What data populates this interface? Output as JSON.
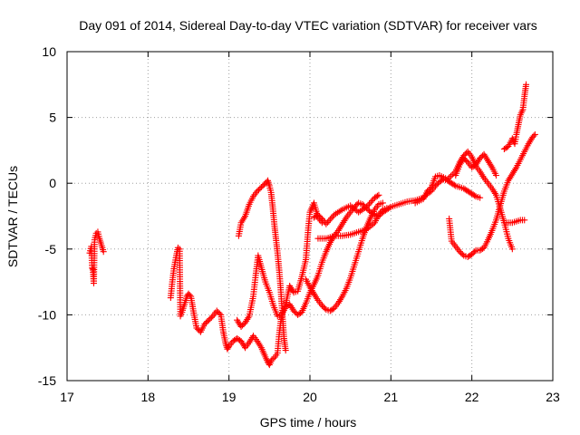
{
  "chart_data": {
    "type": "scatter",
    "title": "Day 091 of 2014, Sidereal Day-to-day VTEC variation (SDTVAR) for receiver vars",
    "xlabel": "GPS time / hours",
    "ylabel": "SDTVAR / TECUs",
    "xlim": [
      17,
      23
    ],
    "ylim": [
      -15,
      10
    ],
    "xticks": [
      17,
      18,
      19,
      20,
      21,
      22,
      23
    ],
    "yticks": [
      -15,
      -10,
      -5,
      0,
      5,
      10
    ],
    "xtick_labels": [
      "17",
      "18",
      "19",
      "20",
      "21",
      "22",
      "23"
    ],
    "ytick_labels": [
      "-15",
      "-10",
      "-5",
      "0",
      "5",
      "10"
    ],
    "grid": true,
    "marker": "+",
    "color": "#ff0000",
    "series": [
      {
        "name": "receiver-vars",
        "segments": [
          [
            [
              17.28,
              -5.3
            ],
            [
              17.3,
              -4.8
            ],
            [
              17.31,
              -6.4
            ],
            [
              17.32,
              -6.6
            ],
            [
              17.33,
              -7.6
            ],
            [
              17.34,
              -4.3
            ],
            [
              17.36,
              -3.8
            ],
            [
              17.38,
              -3.7
            ],
            [
              17.4,
              -4.2
            ],
            [
              17.42,
              -4.6
            ],
            [
              17.45,
              -5.2
            ]
          ],
          [
            [
              18.28,
              -8.7
            ],
            [
              18.3,
              -7.5
            ],
            [
              18.32,
              -6.5
            ],
            [
              18.35,
              -5.5
            ],
            [
              18.37,
              -4.9
            ],
            [
              18.39,
              -5.0
            ],
            [
              18.4,
              -10.1
            ],
            [
              18.42,
              -9.8
            ],
            [
              18.45,
              -9.2
            ],
            [
              18.48,
              -8.6
            ],
            [
              18.5,
              -8.4
            ],
            [
              18.53,
              -8.6
            ],
            [
              18.56,
              -9.7
            ],
            [
              18.6,
              -11.0
            ],
            [
              18.65,
              -11.3
            ],
            [
              18.7,
              -10.7
            ],
            [
              18.75,
              -10.4
            ],
            [
              18.8,
              -10.1
            ],
            [
              18.85,
              -9.7
            ],
            [
              18.9,
              -10.0
            ],
            [
              18.93,
              -11.3
            ],
            [
              18.96,
              -12.2
            ],
            [
              18.98,
              -12.6
            ],
            [
              19.0,
              -12.4
            ],
            [
              19.05,
              -12.0
            ],
            [
              19.1,
              -11.8
            ],
            [
              19.15,
              -12.0
            ],
            [
              19.2,
              -12.5
            ],
            [
              19.25,
              -12.1
            ],
            [
              19.3,
              -11.6
            ],
            [
              19.35,
              -12.0
            ],
            [
              19.4,
              -12.5
            ],
            [
              19.45,
              -13.2
            ],
            [
              19.48,
              -13.6
            ],
            [
              19.5,
              -13.8
            ],
            [
              19.53,
              -13.4
            ],
            [
              19.57,
              -13.2
            ],
            [
              19.6,
              -12.9
            ],
            [
              19.62,
              -11.5
            ],
            [
              19.64,
              -10.5
            ],
            [
              19.66,
              -9.9
            ],
            [
              19.7,
              -9.4
            ],
            [
              19.75,
              -9.2
            ],
            [
              19.8,
              -9.7
            ],
            [
              19.85,
              -10.0
            ],
            [
              19.9,
              -9.8
            ],
            [
              19.95,
              -9.1
            ],
            [
              20.0,
              -8.3
            ],
            [
              20.05,
              -7.7
            ],
            [
              20.1,
              -7.0
            ],
            [
              20.15,
              -6.0
            ],
            [
              20.2,
              -5.2
            ],
            [
              20.25,
              -4.5
            ],
            [
              20.3,
              -4.0
            ],
            [
              20.35,
              -3.6
            ],
            [
              20.4,
              -3.1
            ],
            [
              20.45,
              -2.6
            ],
            [
              20.5,
              -2.2
            ],
            [
              20.55,
              -1.8
            ],
            [
              20.6,
              -1.5
            ],
            [
              20.65,
              -1.6
            ],
            [
              20.7,
              -1.9
            ],
            [
              20.75,
              -2.2
            ],
            [
              20.8,
              -2.4
            ],
            [
              20.85,
              -2.5
            ],
            [
              20.9,
              -2.2
            ],
            [
              20.95,
              -2.0
            ],
            [
              21.0,
              -1.8
            ],
            [
              21.1,
              -1.6
            ],
            [
              21.2,
              -1.4
            ],
            [
              21.3,
              -1.3
            ],
            [
              21.4,
              -1.1
            ],
            [
              21.45,
              -0.8
            ],
            [
              21.5,
              -0.6
            ],
            [
              21.55,
              -0.2
            ],
            [
              21.6,
              0.1
            ],
            [
              21.65,
              0.3
            ],
            [
              21.7,
              0.2
            ],
            [
              21.75,
              0.0
            ],
            [
              21.8,
              -0.2
            ],
            [
              21.85,
              -0.3
            ],
            [
              21.9,
              -0.4
            ],
            [
              21.95,
              -0.6
            ],
            [
              22.0,
              -0.8
            ],
            [
              22.05,
              -1.0
            ],
            [
              22.1,
              -1.1
            ]
          ],
          [
            [
              19.12,
              -4.0
            ],
            [
              19.15,
              -3.0
            ],
            [
              19.2,
              -2.5
            ],
            [
              19.25,
              -1.6
            ],
            [
              19.3,
              -1.0
            ],
            [
              19.35,
              -0.6
            ],
            [
              19.4,
              -0.3
            ],
            [
              19.45,
              0.0
            ],
            [
              19.48,
              0.2
            ],
            [
              19.5,
              -0.2
            ],
            [
              19.52,
              -0.7
            ],
            [
              19.54,
              -1.8
            ],
            [
              19.56,
              -3.1
            ],
            [
              19.58,
              -4.2
            ],
            [
              19.6,
              -5.3
            ],
            [
              19.62,
              -6.6
            ],
            [
              19.64,
              -8.1
            ],
            [
              19.66,
              -10.0
            ],
            [
              19.68,
              -11.8
            ],
            [
              19.7,
              -12.7
            ]
          ],
          [
            [
              19.1,
              -10.4
            ],
            [
              19.15,
              -10.9
            ],
            [
              19.2,
              -10.6
            ],
            [
              19.25,
              -10.1
            ],
            [
              19.3,
              -8.6
            ],
            [
              19.33,
              -7.0
            ],
            [
              19.36,
              -5.5
            ],
            [
              19.4,
              -6.4
            ],
            [
              19.45,
              -7.5
            ],
            [
              19.5,
              -8.3
            ],
            [
              19.55,
              -9.3
            ],
            [
              19.6,
              -10.1
            ],
            [
              19.65,
              -10.0
            ],
            [
              19.7,
              -9.2
            ],
            [
              19.75,
              -7.8
            ],
            [
              19.8,
              -8.3
            ],
            [
              19.85,
              -8.2
            ],
            [
              19.9,
              -7.1
            ],
            [
              19.95,
              -5.8
            ],
            [
              19.98,
              -3.4
            ],
            [
              20.0,
              -2.2
            ],
            [
              20.05,
              -1.5
            ],
            [
              20.1,
              -2.6
            ],
            [
              20.15,
              -3.0
            ]
          ],
          [
            [
              19.95,
              -7.3
            ],
            [
              20.0,
              -7.9
            ],
            [
              20.05,
              -8.4
            ],
            [
              20.1,
              -8.9
            ],
            [
              20.15,
              -9.3
            ],
            [
              20.2,
              -9.6
            ],
            [
              20.25,
              -9.7
            ],
            [
              20.3,
              -9.5
            ],
            [
              20.35,
              -9.1
            ],
            [
              20.4,
              -8.6
            ],
            [
              20.45,
              -8.0
            ],
            [
              20.5,
              -7.2
            ],
            [
              20.55,
              -6.2
            ],
            [
              20.6,
              -5.2
            ],
            [
              20.65,
              -4.2
            ],
            [
              20.7,
              -3.3
            ],
            [
              20.75,
              -2.6
            ],
            [
              20.8,
              -2.0
            ],
            [
              20.85,
              -1.6
            ],
            [
              20.9,
              -1.5
            ]
          ],
          [
            [
              20.1,
              -4.2
            ],
            [
              20.2,
              -4.2
            ],
            [
              20.3,
              -4.0
            ],
            [
              20.4,
              -4.0
            ],
            [
              20.5,
              -3.9
            ],
            [
              20.6,
              -3.7
            ],
            [
              20.7,
              -3.5
            ],
            [
              20.8,
              -3.0
            ],
            [
              20.85,
              -2.4
            ],
            [
              20.9,
              -2.0
            ],
            [
              20.95,
              -1.9
            ]
          ],
          [
            [
              20.05,
              -2.6
            ],
            [
              20.1,
              -2.4
            ],
            [
              20.15,
              -2.7
            ],
            [
              20.2,
              -3.1
            ],
            [
              20.3,
              -2.4
            ],
            [
              20.4,
              -2.0
            ],
            [
              20.5,
              -1.7
            ],
            [
              20.6,
              -2.2
            ],
            [
              20.7,
              -1.8
            ],
            [
              20.8,
              -1.1
            ],
            [
              20.85,
              -0.9
            ]
          ],
          [
            [
              21.3,
              -1.5
            ],
            [
              21.4,
              -1.2
            ],
            [
              21.45,
              -0.6
            ],
            [
              21.5,
              -0.3
            ],
            [
              21.55,
              0.5
            ],
            [
              21.6,
              0.6
            ],
            [
              21.7,
              0.3
            ],
            [
              21.8,
              0.9
            ],
            [
              21.85,
              1.6
            ],
            [
              21.9,
              2.1
            ],
            [
              21.95,
              2.4
            ],
            [
              22.0,
              2.0
            ],
            [
              22.05,
              1.3
            ],
            [
              22.1,
              0.9
            ],
            [
              22.15,
              0.4
            ],
            [
              22.2,
              0.0
            ],
            [
              22.25,
              -0.4
            ],
            [
              22.3,
              -0.9
            ],
            [
              22.35,
              -1.9
            ],
            [
              22.4,
              -3.0
            ],
            [
              22.45,
              -4.2
            ],
            [
              22.5,
              -5.0
            ]
          ],
          [
            [
              21.72,
              -2.7
            ],
            [
              21.75,
              -4.4
            ],
            [
              21.8,
              -4.8
            ],
            [
              21.85,
              -5.2
            ],
            [
              21.9,
              -5.5
            ],
            [
              21.95,
              -5.6
            ],
            [
              22.0,
              -5.4
            ],
            [
              22.05,
              -5.1
            ],
            [
              22.1,
              -5.1
            ],
            [
              22.15,
              -4.9
            ],
            [
              22.2,
              -4.3
            ],
            [
              22.25,
              -3.6
            ],
            [
              22.3,
              -2.8
            ],
            [
              22.35,
              -1.7
            ],
            [
              22.4,
              -0.6
            ],
            [
              22.45,
              0.2
            ],
            [
              22.5,
              0.7
            ],
            [
              22.55,
              1.2
            ],
            [
              22.6,
              1.8
            ],
            [
              22.65,
              2.4
            ],
            [
              22.7,
              3.0
            ],
            [
              22.75,
              3.5
            ],
            [
              22.78,
              3.7
            ]
          ],
          [
            [
              22.4,
              2.6
            ],
            [
              22.45,
              2.8
            ],
            [
              22.5,
              3.4
            ],
            [
              22.53,
              3.0
            ],
            [
              22.55,
              3.7
            ],
            [
              22.58,
              4.6
            ],
            [
              22.6,
              5.2
            ],
            [
              22.63,
              5.6
            ],
            [
              22.65,
              6.6
            ],
            [
              22.67,
              7.5
            ]
          ],
          [
            [
              22.4,
              -3.0
            ],
            [
              22.45,
              -3.0
            ],
            [
              22.5,
              -3.0
            ],
            [
              22.55,
              -2.9
            ],
            [
              22.6,
              -2.8
            ],
            [
              22.65,
              -2.8
            ]
          ],
          [
            [
              21.8,
              0.6
            ],
            [
              21.85,
              1.4
            ],
            [
              21.9,
              1.9
            ],
            [
              21.95,
              1.6
            ],
            [
              22.0,
              1.2
            ],
            [
              22.05,
              1.4
            ],
            [
              22.1,
              1.9
            ],
            [
              22.15,
              2.2
            ],
            [
              22.2,
              1.7
            ],
            [
              22.25,
              1.2
            ],
            [
              22.3,
              0.6
            ]
          ]
        ]
      }
    ]
  }
}
